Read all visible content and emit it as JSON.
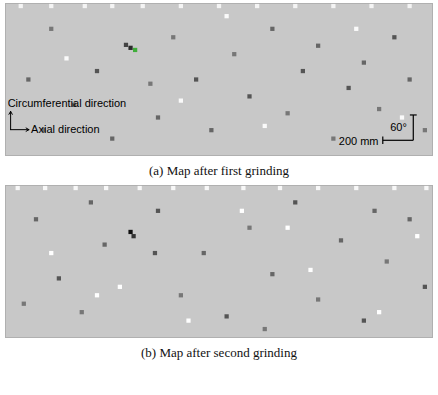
{
  "chart_data": [
    {
      "type": "scatter",
      "title": "(a) Map after first grinding",
      "xlabel": "Axial direction",
      "ylabel": "Circumferential direction",
      "xlim": [
        0,
        2800
      ],
      "ylim": [
        0,
        360
      ],
      "tick_labels": false,
      "grid": false,
      "color": "#c8c8c8",
      "marker": "square",
      "annotations": [
        {
          "text": "60°",
          "value": 60,
          "axis": "y"
        },
        {
          "text": "200 mm",
          "value": 200,
          "axis": "x"
        }
      ],
      "x": [
        100,
        300,
        520,
        700,
        900,
        1150,
        1400,
        1650,
        1900,
        2150,
        2400,
        2650,
        820,
        850,
        790,
        300,
        450,
        600,
        1000,
        1100,
        1250,
        1350,
        1500,
        1600,
        1750,
        1850,
        1950,
        2050,
        2150,
        2250,
        2350,
        2450,
        2550,
        2650,
        2750,
        150,
        250,
        700,
        950,
        400,
        1150,
        1700,
        2300,
        2600,
        1450
      ],
      "y": [
        354,
        354,
        354,
        354,
        354,
        354,
        354,
        354,
        354,
        354,
        354,
        354,
        255,
        250,
        262,
        300,
        120,
        200,
        90,
        280,
        180,
        60,
        240,
        140,
        300,
        100,
        200,
        260,
        40,
        160,
        220,
        110,
        280,
        180,
        60,
        180,
        60,
        40,
        170,
        230,
        130,
        70,
        300,
        90,
        330
      ],
      "colors": [
        "#f4f4f4",
        "#f4f4f4",
        "#f4f4f4",
        "#f4f4f4",
        "#f4f4f4",
        "#f4f4f4",
        "#f4f4f4",
        "#f4f4f4",
        "#f4f4f4",
        "#f4f4f4",
        "#f4f4f4",
        "#f4f4f4",
        "#2a2a2a",
        "#3fae3a",
        "#444444",
        "#777777",
        "#666666",
        "#555555",
        "#666666",
        "#777777",
        "#555555",
        "#666666",
        "#777777",
        "#555555",
        "#666666",
        "#777777",
        "#555555",
        "#666666",
        "#777777",
        "#555555",
        "#666666",
        "#777777",
        "#555555",
        "#666666",
        "#777777",
        "#666666",
        "#777777",
        "#666666",
        "#777777",
        "#fafafa",
        "#fafafa",
        "#fafafa",
        "#fafafa",
        "#fafafa",
        "#fafafa"
      ]
    },
    {
      "type": "scatter",
      "title": "(b) Map after second grinding",
      "xlim": [
        0,
        2800
      ],
      "ylim": [
        0,
        360
      ],
      "tick_labels": false,
      "grid": false,
      "color": "#c8c8c8",
      "marker": "square",
      "x": [
        80,
        260,
        460,
        660,
        880,
        1100,
        1320,
        1560,
        1800,
        2050,
        2300,
        2550,
        2760,
        820,
        840,
        200,
        350,
        500,
        650,
        1000,
        1150,
        1300,
        1450,
        1600,
        1750,
        1900,
        2050,
        2200,
        2350,
        2500,
        2650,
        2750,
        120,
        560,
        980,
        1700,
        2420,
        300,
        750,
        1200,
        1550,
        2000,
        2450,
        2700,
        600,
        1850
      ],
      "y": [
        354,
        354,
        354,
        354,
        354,
        354,
        354,
        354,
        354,
        354,
        354,
        354,
        354,
        250,
        240,
        280,
        140,
        60,
        220,
        300,
        100,
        200,
        50,
        260,
        150,
        320,
        90,
        230,
        40,
        180,
        280,
        120,
        80,
        320,
        200,
        20,
        300,
        200,
        120,
        40,
        300,
        160,
        60,
        240,
        100,
        260
      ],
      "colors": [
        "#f8f8f8",
        "#f8f8f8",
        "#f8f8f8",
        "#f8f8f8",
        "#f8f8f8",
        "#f8f8f8",
        "#f8f8f8",
        "#f8f8f8",
        "#f8f8f8",
        "#f8f8f8",
        "#f8f8f8",
        "#f8f8f8",
        "#f8f8f8",
        "#111111",
        "#333333",
        "#666666",
        "#555555",
        "#777777",
        "#666666",
        "#555555",
        "#777777",
        "#666666",
        "#555555",
        "#777777",
        "#666666",
        "#555555",
        "#777777",
        "#666666",
        "#555555",
        "#777777",
        "#666666",
        "#555555",
        "#777777",
        "#666666",
        "#555555",
        "#777777",
        "#666666",
        "#ffffff",
        "#ffffff",
        "#ffffff",
        "#ffffff",
        "#ffffff",
        "#ffffff",
        "#ffffff",
        "#ffffff",
        "#ffffff"
      ]
    }
  ]
}
